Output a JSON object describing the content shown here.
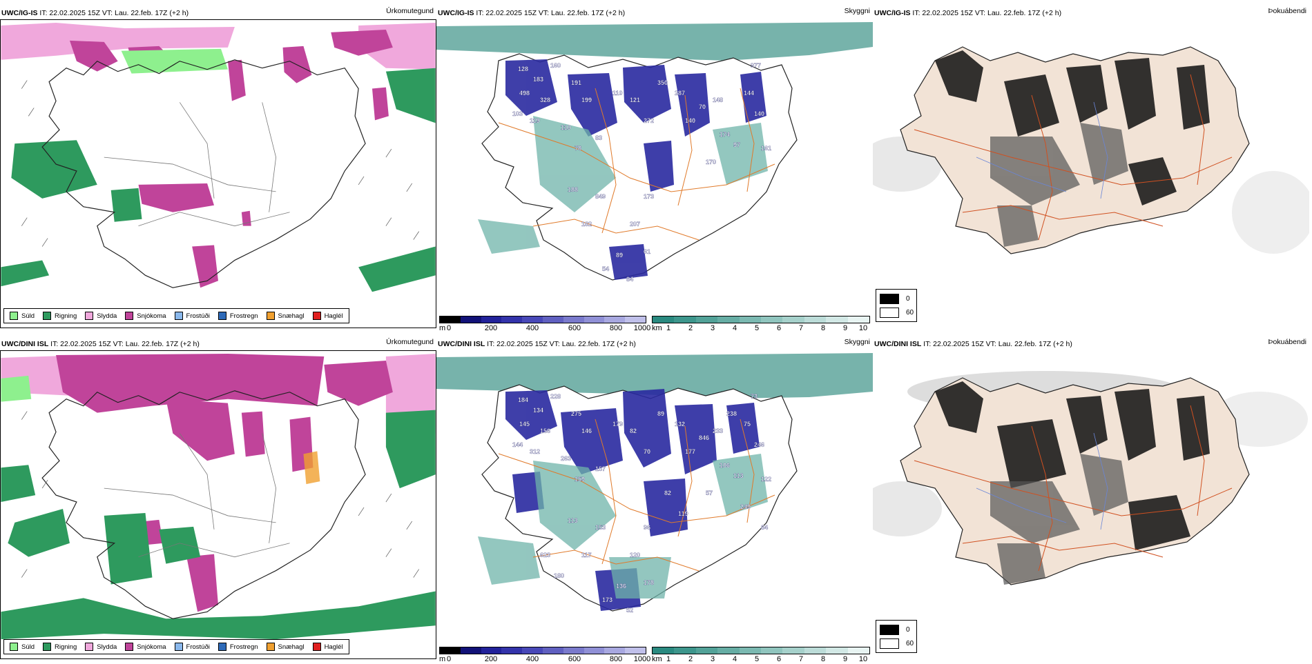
{
  "rows": [
    {
      "model": "UWC/IG-IS",
      "header_rest": " IT: 22.02.2025 15Z VT: Lau. 22.feb. 17Z (+2 h)",
      "panels": [
        {
          "title": "Úrkomutegund",
          "type": "precip-type"
        },
        {
          "title": "Skyggni",
          "type": "visibility"
        },
        {
          "title": "Þokuábendi",
          "type": "fog"
        }
      ],
      "visibility_labels": [
        "128",
        "183",
        "160",
        "498",
        "328",
        "103",
        "119",
        "191",
        "199",
        "110",
        "78",
        "83",
        "110",
        "121",
        "272",
        "350",
        "287",
        "140",
        "70",
        "148",
        "174",
        "97",
        "144",
        "140",
        "161",
        "173",
        "188",
        "849",
        "182",
        "207",
        "61",
        "89",
        "54",
        "84",
        "977",
        "170"
      ]
    },
    {
      "model": "UWC/DINI ISL",
      "header_rest": " IT: 22.02.2025 15Z VT: Lau. 22.feb. 17Z (+2 h)",
      "panels": [
        {
          "title": "Úrkomutegund",
          "type": "precip-type"
        },
        {
          "title": "Skyggni",
          "type": "visibility"
        },
        {
          "title": "Þokuábendi",
          "type": "fog"
        }
      ],
      "visibility_labels": [
        "184",
        "134",
        "228",
        "145",
        "156",
        "144",
        "312",
        "275",
        "146",
        "263",
        "159",
        "157",
        "179",
        "82",
        "70",
        "89",
        "132",
        "177",
        "846",
        "233",
        "106",
        "113",
        "75",
        "246",
        "122",
        "96",
        "113",
        "153",
        "117",
        "120",
        "178",
        "136",
        "173",
        "52",
        "73",
        "57",
        "82",
        "119",
        "623",
        "180",
        "238",
        "249",
        "84"
      ]
    }
  ],
  "precip_legend": [
    {
      "label": "Súld",
      "color": "#8ef08e"
    },
    {
      "label": "Rigning",
      "color": "#2e9a5e"
    },
    {
      "label": "Slydda",
      "color": "#f0a8dc"
    },
    {
      "label": "Snjókoma",
      "color": "#c0449a"
    },
    {
      "label": "Frostúði",
      "color": "#8ab8ec"
    },
    {
      "label": "Frostregn",
      "color": "#2e6ab8"
    },
    {
      "label": "Snæhagl",
      "color": "#f0a030"
    },
    {
      "label": "Haglél",
      "color": "#e02020"
    }
  ],
  "elevation_scale": {
    "unit": "m",
    "ticks": [
      "0",
      "200",
      "400",
      "600",
      "800",
      "1000"
    ],
    "colors": [
      "#000000",
      "#111177",
      "#22229a",
      "#3333aa",
      "#4848b8",
      "#6060c0",
      "#7a7acc",
      "#9090d6",
      "#a8a8e0",
      "#c0c0ea"
    ]
  },
  "visibility_scale": {
    "unit": "km",
    "ticks": [
      "1",
      "2",
      "3",
      "4",
      "5",
      "6",
      "7",
      "8",
      "9",
      "10"
    ],
    "colors": [
      "#2a8a80",
      "#3d968c",
      "#52a298",
      "#66ada4",
      "#7bb9b1",
      "#90c5be",
      "#a6d1cb",
      "#bcdcd8",
      "#d2e8e5",
      "#e8f4f2"
    ]
  },
  "fog_legend": [
    {
      "label": "0",
      "color": "#000000"
    },
    {
      "label": "60",
      "color": "#ffffff"
    }
  ]
}
